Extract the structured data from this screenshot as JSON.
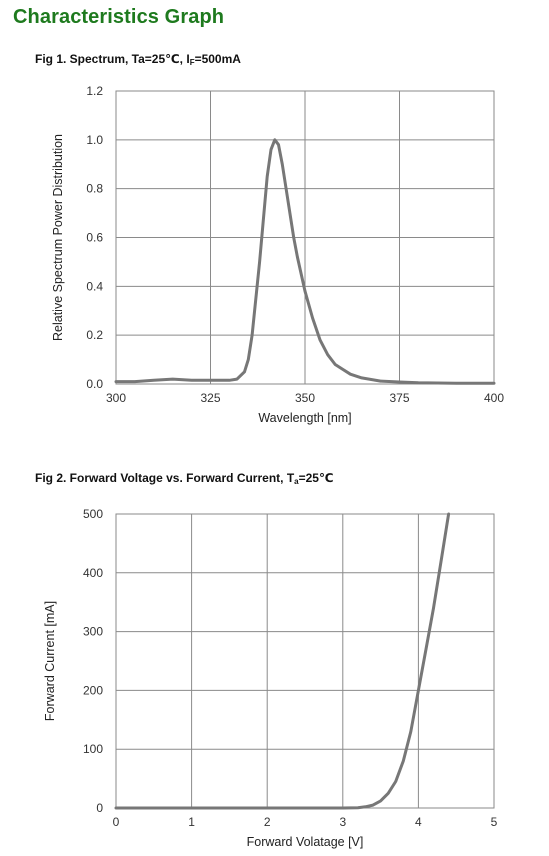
{
  "page": {
    "title": "Characteristics Graph"
  },
  "fig1": {
    "title_pre": "Fig 1. Spectrum, Ta=25℃, I",
    "title_sub": "F",
    "title_post": "=500mA"
  },
  "fig2": {
    "title_pre": "Fig 2. Forward Voltage vs. Forward Current, T",
    "title_sub": "a",
    "title_post": "=25℃"
  },
  "chart_data": [
    {
      "type": "line",
      "xlabel": "Wavelength [nm]",
      "ylabel": "Relative Spectrum Power Distribution",
      "xlim": [
        300,
        400
      ],
      "ylim": [
        0,
        1.2
      ],
      "xticks": [
        "300",
        "325",
        "350",
        "375",
        "400"
      ],
      "yticks": [
        "0.0",
        "0.2",
        "0.4",
        "0.6",
        "0.8",
        "1.0",
        "1.2"
      ],
      "grid": true,
      "color": "#777777",
      "x": [
        300,
        305,
        310,
        315,
        320,
        325,
        330,
        332,
        334,
        335,
        336,
        338,
        340,
        341,
        342,
        343,
        344,
        345,
        346,
        347,
        348,
        350,
        352,
        354,
        356,
        358,
        360,
        362,
        365,
        370,
        375,
        380,
        385,
        390,
        395,
        400
      ],
      "y": [
        0.01,
        0.01,
        0.015,
        0.02,
        0.015,
        0.015,
        0.015,
        0.02,
        0.05,
        0.1,
        0.2,
        0.5,
        0.85,
        0.96,
        1.0,
        0.98,
        0.9,
        0.8,
        0.7,
        0.6,
        0.52,
        0.38,
        0.27,
        0.18,
        0.12,
        0.08,
        0.06,
        0.04,
        0.025,
        0.012,
        0.008,
        0.005,
        0.004,
        0.003,
        0.003,
        0.003
      ]
    },
    {
      "type": "line",
      "xlabel": "Forward  Volatage [V]",
      "ylabel": "Forward Current [mA]",
      "xlim": [
        0,
        5
      ],
      "ylim": [
        0,
        500
      ],
      "xticks": [
        "0",
        "1",
        "2",
        "3",
        "4",
        "5"
      ],
      "yticks": [
        "0",
        "100",
        "200",
        "300",
        "400",
        "500"
      ],
      "grid": true,
      "color": "#777777",
      "x": [
        0,
        1,
        2,
        3,
        3.2,
        3.3,
        3.4,
        3.5,
        3.6,
        3.7,
        3.8,
        3.9,
        4.0,
        4.1,
        4.2,
        4.3,
        4.4
      ],
      "y": [
        0,
        0,
        0,
        0,
        0.5,
        2,
        5,
        12,
        25,
        45,
        80,
        130,
        200,
        270,
        340,
        420,
        500
      ]
    }
  ]
}
